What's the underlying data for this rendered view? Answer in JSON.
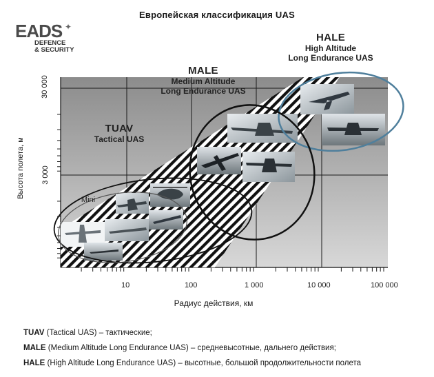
{
  "title": "Европейская классификация UAS",
  "logo": {
    "main": "EADS",
    "sub_line1": "DEFENCE",
    "sub_line2": "& SECURITY"
  },
  "categories": {
    "tuav": {
      "name": "TUAV",
      "desc": "Tactical UAS"
    },
    "male": {
      "name": "MALE",
      "desc_line1": "Medium Altitude",
      "desc_line2": "Long Endurance UAS"
    },
    "hale": {
      "name": "HALE",
      "desc_line1": "High Altitude",
      "desc_line2": "Long Endurance UAS"
    },
    "mini": {
      "name": "Mini"
    }
  },
  "axes": {
    "y_label": "Высота полета, м",
    "x_label": "Радиус действия, км",
    "y_ticks": [
      "30 000",
      "3 000"
    ],
    "x_ticks": [
      "10",
      "100",
      "1 000",
      "10 000",
      "100 000"
    ]
  },
  "legend": [
    {
      "abbr": "TUAV",
      "text": " (Tactical UAS) – тактические;"
    },
    {
      "abbr": "MALE",
      "text": " (Medium Altitude Long Endurance UAS) – средневысотные, дальнего действия;"
    },
    {
      "abbr": "HALE",
      "text": " (High Altitude Long Endurance UAS) – высотные, большой продолжительности полета"
    }
  ],
  "colors": {
    "plot_bg": "#a3a3a3",
    "plot_bg_light": "#cfcfcf",
    "grid": "#1a1a1a",
    "ellipse_blue": "#4f7f9c",
    "ellipse_black": "#111111",
    "ellipse_grey": "#555555"
  }
}
